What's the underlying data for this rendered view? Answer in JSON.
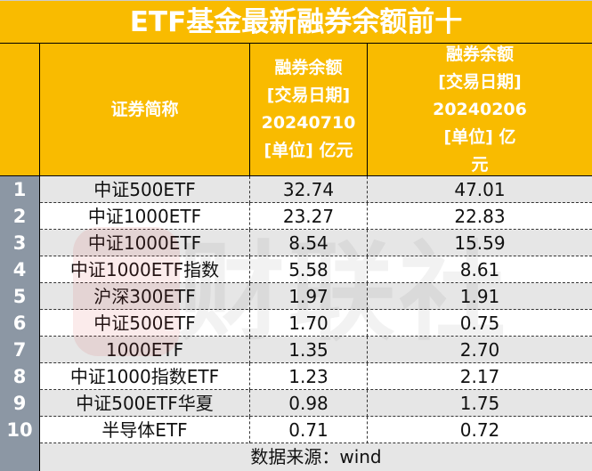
{
  "title": "ETF基金最新融券余额前十",
  "header": {
    "name": "证券简称",
    "col2": [
      "融券余额",
      "[交易日期]",
      "20240710",
      "[单位] 亿元"
    ],
    "col3": [
      "融券余额",
      "[交易日期]",
      "20240206",
      "[单位] 亿",
      "元"
    ]
  },
  "rows": [
    {
      "n": "1",
      "name": "中证500ETF",
      "v1": "32.74",
      "v2": "47.01"
    },
    {
      "n": "2",
      "name": "中证1000ETF",
      "v1": "23.27",
      "v2": "22.83"
    },
    {
      "n": "3",
      "name": "中证1000ETF",
      "v1": "8.54",
      "v2": "15.59"
    },
    {
      "n": "4",
      "name": "中证1000ETF指数",
      "v1": "5.58",
      "v2": "8.61"
    },
    {
      "n": "5",
      "name": "沪深300ETF",
      "v1": "1.97",
      "v2": "1.91"
    },
    {
      "n": "6",
      "name": "中证500ETF",
      "v1": "1.70",
      "v2": "0.75"
    },
    {
      "n": "7",
      "name": "1000ETF",
      "v1": "1.35",
      "v2": "2.70"
    },
    {
      "n": "8",
      "name": "中证1000指数ETF",
      "v1": "1.23",
      "v2": "2.17"
    },
    {
      "n": "9",
      "name": "中证500ETF华夏",
      "v1": "0.98",
      "v2": "1.75"
    },
    {
      "n": "10",
      "name": "半导体ETF",
      "v1": "0.71",
      "v2": "0.72"
    }
  ],
  "footer": "数据来源：wind",
  "watermark": "财联社",
  "colors": {
    "header": "#f9bb00",
    "index_col": "#8c97a4",
    "stripe": "#e6e6e6"
  }
}
